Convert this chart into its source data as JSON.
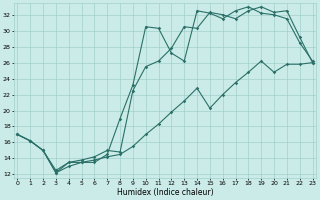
{
  "xlabel": "Humidex (Indice chaleur)",
  "xlim": [
    -0.3,
    23.3
  ],
  "ylim": [
    11.5,
    33.5
  ],
  "xticks": [
    0,
    1,
    2,
    3,
    4,
    5,
    6,
    7,
    8,
    9,
    10,
    11,
    12,
    13,
    14,
    15,
    16,
    17,
    18,
    19,
    20,
    21,
    22,
    23
  ],
  "yticks": [
    12,
    14,
    16,
    18,
    20,
    22,
    24,
    26,
    28,
    30,
    32
  ],
  "bg_color": "#cbebe8",
  "grid_color": "#a0d0cc",
  "line_color": "#2a7068",
  "line1_x": [
    0,
    1,
    2,
    3,
    4,
    5,
    6,
    7,
    8,
    9,
    10,
    11,
    12,
    13,
    14,
    15,
    16,
    17,
    18,
    19,
    20,
    21,
    22,
    23
  ],
  "line1_y": [
    17.0,
    16.2,
    15.0,
    12.2,
    13.5,
    13.5,
    13.5,
    14.5,
    19.0,
    23.2,
    30.5,
    30.3,
    27.2,
    26.2,
    32.5,
    32.2,
    31.5,
    32.5,
    33.0,
    32.2,
    32.0,
    31.5,
    28.5,
    26.2
  ],
  "line2_x": [
    0,
    1,
    2,
    3,
    4,
    5,
    6,
    7,
    8,
    9,
    10,
    11,
    12,
    13,
    14,
    15,
    16,
    17,
    18,
    19,
    20,
    21,
    22,
    23
  ],
  "line2_y": [
    17.0,
    16.2,
    15.0,
    12.5,
    13.5,
    13.8,
    14.2,
    15.0,
    14.8,
    22.5,
    25.5,
    26.2,
    27.8,
    30.5,
    30.3,
    32.3,
    32.0,
    31.5,
    32.5,
    33.0,
    32.3,
    32.5,
    29.2,
    26.0
  ],
  "line3_x": [
    0,
    1,
    2,
    3,
    4,
    5,
    6,
    7,
    8,
    9,
    10,
    11,
    12,
    13,
    14,
    15,
    16,
    17,
    18,
    19,
    20,
    21,
    22,
    23
  ],
  "line3_y": [
    17.0,
    16.2,
    15.0,
    12.2,
    13.0,
    13.5,
    13.8,
    14.2,
    14.5,
    15.5,
    17.0,
    18.3,
    19.8,
    21.2,
    22.8,
    20.3,
    22.0,
    23.5,
    24.8,
    26.2,
    24.8,
    25.8,
    25.8,
    26.0
  ],
  "marker": "D",
  "marker_size": 1.8,
  "linewidth": 0.8
}
